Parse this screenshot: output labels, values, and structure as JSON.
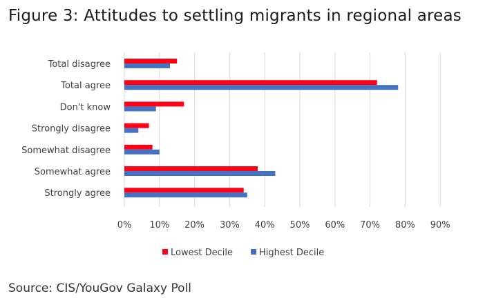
{
  "figure_title": "Figure 3: Attitudes to settling migrants in regional areas",
  "source": "Source: CIS/YouGov Galaxy Poll",
  "colors": {
    "lowest": "#ff0019",
    "highest": "#4472c4",
    "grid": "#d9d9d9"
  },
  "chart_data": {
    "type": "bar",
    "orientation": "horizontal",
    "title": "Attitudes to settling migrants in regional areas",
    "categories": [
      "Total disagree",
      "Total agree",
      "Don't know",
      "Strongly disagree",
      "Somewhat disagree",
      "Somewhat agree",
      "Strongly agree"
    ],
    "series": [
      {
        "name": "Lowest Decile",
        "values": [
          15,
          72,
          17,
          7,
          8,
          38,
          34
        ]
      },
      {
        "name": "Highest Decile",
        "values": [
          13,
          78,
          9,
          4,
          10,
          43,
          35
        ]
      }
    ],
    "xlim": [
      0,
      90
    ],
    "xticks": [
      0,
      10,
      20,
      30,
      40,
      50,
      60,
      70,
      80,
      90
    ],
    "tick_suffix": "%",
    "grid": true,
    "legend": "bottom-center",
    "xlabel": "",
    "ylabel": ""
  }
}
